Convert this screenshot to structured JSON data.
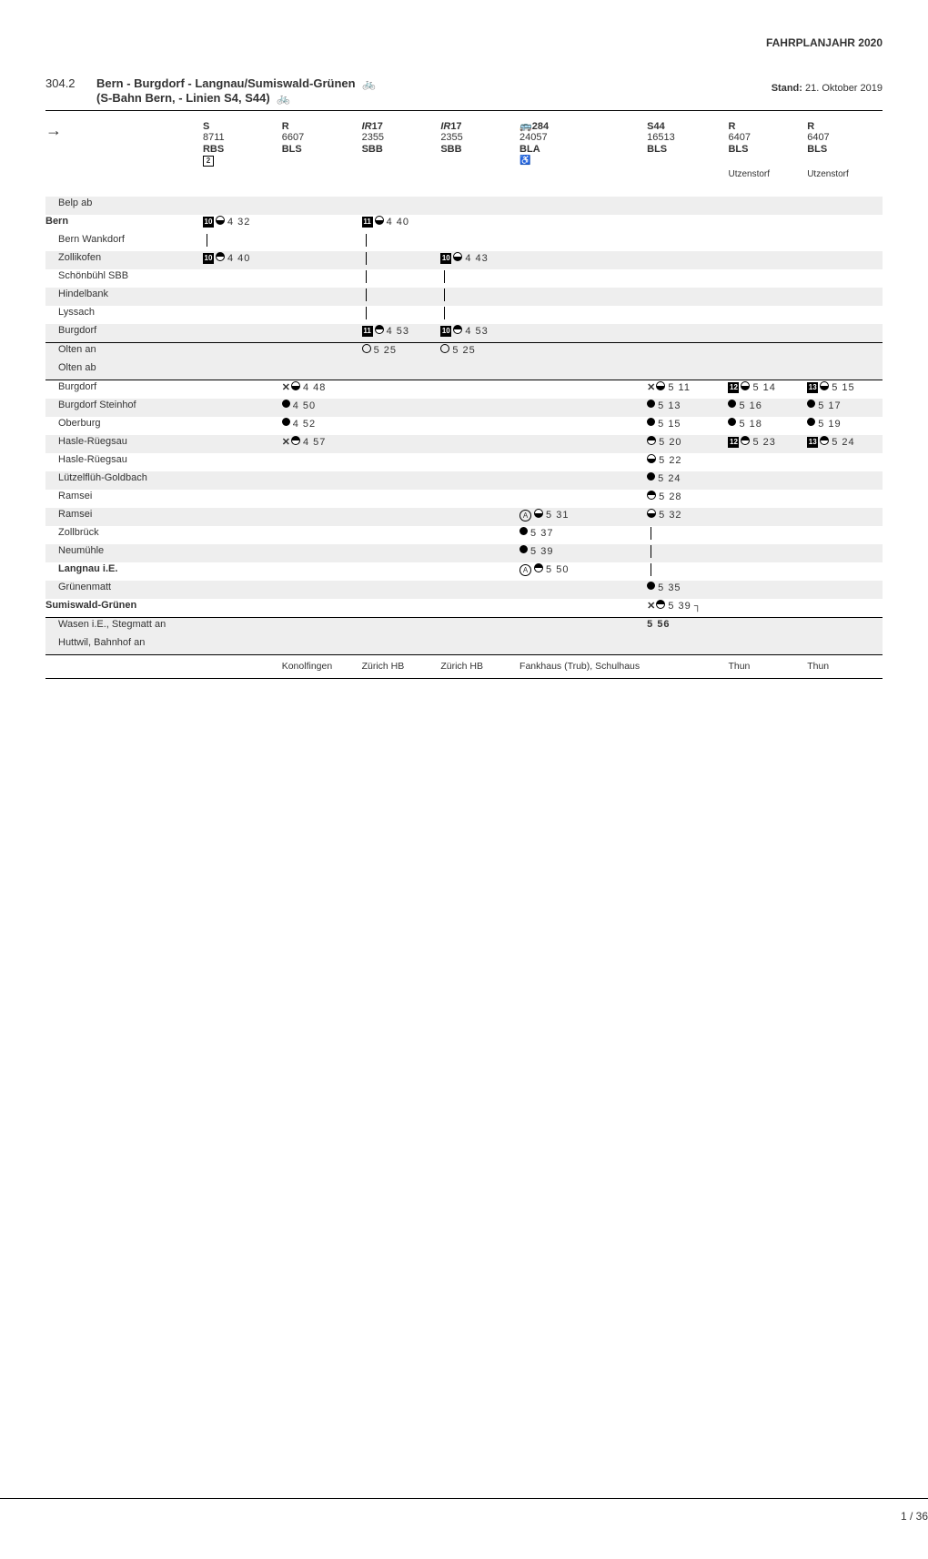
{
  "header_right": "FAHRPLANJAHR 2020",
  "route_number": "304.2",
  "title_line1": "Bern - Burgdorf - Langnau/Sumiswald-Grünen",
  "title_line2": "(S-Bahn Bern, - Linien S4, S44)",
  "bike_glyph": "🚲",
  "stand_label": "Stand:",
  "stand_date": " 21. Oktober 2019",
  "arrow_glyph": "→",
  "heads": [
    {
      "type": "S",
      "num": "8711",
      "op": "RBS",
      "extra": "2"
    },
    {
      "type": "R",
      "num": "6607",
      "op": "BLS",
      "extra": ""
    },
    {
      "type": "IR17",
      "num": "2355",
      "op": "SBB",
      "extra": "",
      "ir": true
    },
    {
      "type": "IR17",
      "num": "2355",
      "op": "SBB",
      "extra": "",
      "ir": true
    },
    {
      "type": "🚌284",
      "num": "24057",
      "op": "BLA",
      "extra": "♿",
      "bus": true
    },
    {
      "type": "S44",
      "num": "16513",
      "op": "BLS",
      "extra": ""
    },
    {
      "type": "R",
      "num": "6407",
      "op": "BLS",
      "extra": ""
    },
    {
      "type": "R",
      "num": "6407",
      "op": "BLS",
      "extra": ""
    }
  ],
  "head_dest": [
    "",
    "",
    "",
    "",
    "",
    "",
    "Utzenstorf",
    "Utzenstorf"
  ],
  "stations": [
    {
      "name": "Belp ab",
      "indent": 1,
      "shade": 1,
      "cells": [
        "",
        "",
        "",
        "",
        "",
        "",
        "",
        ""
      ]
    },
    {
      "name": "Bern",
      "bold": 1,
      "cells": [
        {
          "ft": "10",
          "sym": "half-top",
          "t": "4 32"
        },
        "",
        {
          "ft": "11",
          "sym": "half-top",
          "t": "4 40"
        },
        "",
        "",
        "",
        "",
        ""
      ]
    },
    {
      "name": "Bern Wankdorf",
      "indent": 1,
      "cells": [
        {
          "line": 1
        },
        "",
        {
          "line": 1
        },
        "",
        "",
        "",
        "",
        ""
      ]
    },
    {
      "name": "Zollikofen",
      "indent": 1,
      "shade": 1,
      "cells": [
        {
          "ft": "10",
          "sym": "half-bot",
          "t": "4 40"
        },
        "",
        {
          "line": 1
        },
        {
          "ft": "10",
          "sym": "half-top",
          "t": "4 43"
        },
        "",
        "",
        "",
        ""
      ]
    },
    {
      "name": "Schönbühl SBB",
      "indent": 1,
      "cells": [
        "",
        "",
        {
          "line": 1
        },
        {
          "line": 1
        },
        "",
        "",
        "",
        ""
      ]
    },
    {
      "name": "Hindelbank",
      "indent": 1,
      "shade": 1,
      "cells": [
        "",
        "",
        {
          "line": 1
        },
        {
          "line": 1
        },
        "",
        "",
        "",
        ""
      ]
    },
    {
      "name": "Lyssach",
      "indent": 1,
      "cells": [
        "",
        "",
        {
          "line": 1
        },
        {
          "line": 1
        },
        "",
        "",
        "",
        ""
      ]
    },
    {
      "name": "Burgdorf",
      "indent": 1,
      "shade": 1,
      "cells": [
        "",
        "",
        {
          "ft": "11",
          "sym": "half-bot",
          "t": "4 53"
        },
        {
          "ft": "10",
          "sym": "half-bot",
          "t": "4 53"
        },
        "",
        "",
        "",
        ""
      ]
    },
    {
      "name": "Olten an",
      "indent": 1,
      "shade": 1,
      "rule_above": 1,
      "cells": [
        "",
        "",
        {
          "sym": "open",
          "t": "5 25"
        },
        {
          "sym": "open",
          "t": "5 25"
        },
        "",
        "",
        "",
        ""
      ]
    },
    {
      "name": "Olten ab",
      "indent": 1,
      "shade": 1,
      "cells": [
        "",
        "",
        "",
        "",
        "",
        "",
        "",
        ""
      ]
    },
    {
      "name": "Burgdorf",
      "indent": 1,
      "rule_above": 1,
      "cells": [
        "",
        {
          "x": 1,
          "sym": "half-top",
          "t": "4 48"
        },
        "",
        "",
        "",
        {
          "x": 1,
          "sym": "half-top",
          "t": "5 11"
        },
        {
          "ft": "12",
          "sym": "half-top",
          "t": "5 14"
        },
        {
          "ft": "13",
          "sym": "half-top",
          "t": "5 15"
        }
      ]
    },
    {
      "name": "Burgdorf Steinhof",
      "indent": 1,
      "shade": 1,
      "cells": [
        "",
        {
          "sym": "full",
          "t": "4 50"
        },
        "",
        "",
        "",
        {
          "sym": "full",
          "t": "5 13"
        },
        {
          "sym": "full",
          "t": "5 16"
        },
        {
          "sym": "full",
          "t": "5 17"
        }
      ]
    },
    {
      "name": "Oberburg",
      "indent": 1,
      "cells": [
        "",
        {
          "sym": "full",
          "t": "4 52"
        },
        "",
        "",
        "",
        {
          "sym": "full",
          "t": "5 15"
        },
        {
          "sym": "full",
          "t": "5 18"
        },
        {
          "sym": "full",
          "t": "5 19"
        }
      ]
    },
    {
      "name": "Hasle-Rüegsau",
      "indent": 1,
      "shade": 1,
      "cells": [
        "",
        {
          "x": 1,
          "sym": "half-bot",
          "t": "4 57"
        },
        "",
        "",
        "",
        {
          "sym": "half-bot",
          "t": "5 20"
        },
        {
          "ft": "12",
          "sym": "half-bot",
          "t": "5 23"
        },
        {
          "ft": "13",
          "sym": "half-bot",
          "t": "5 24"
        }
      ]
    },
    {
      "name": "Hasle-Rüegsau",
      "indent": 1,
      "cells": [
        "",
        "",
        "",
        "",
        "",
        {
          "sym": "half-top",
          "t": "5 22"
        },
        "",
        ""
      ]
    },
    {
      "name": "Lützelflüh-Goldbach",
      "indent": 1,
      "shade": 1,
      "cells": [
        "",
        "",
        "",
        "",
        "",
        {
          "sym": "full",
          "t": "5 24"
        },
        "",
        ""
      ]
    },
    {
      "name": "Ramsei",
      "indent": 1,
      "cells": [
        "",
        "",
        "",
        "",
        "",
        {
          "sym": "half-bot",
          "t": "5 28"
        },
        "",
        ""
      ]
    },
    {
      "name": "Ramsei",
      "indent": 1,
      "shade": 1,
      "cells": [
        "",
        "",
        "",
        "",
        {
          "circ": "A",
          "sym": "half-top",
          "t": "5 31"
        },
        {
          "sym": "half-top",
          "t": "5 32"
        },
        "",
        ""
      ]
    },
    {
      "name": "Zollbrück",
      "indent": 1,
      "cells": [
        "",
        "",
        "",
        "",
        {
          "sym": "full",
          "t": "5 37"
        },
        {
          "line": 1
        },
        "",
        ""
      ]
    },
    {
      "name": "Neumühle",
      "indent": 1,
      "shade": 1,
      "cells": [
        "",
        "",
        "",
        "",
        {
          "sym": "full",
          "t": "5 39"
        },
        {
          "line": 1
        },
        "",
        ""
      ]
    },
    {
      "name": "Langnau i.E.",
      "indent": 1,
      "bold": 1,
      "cells": [
        "",
        "",
        "",
        "",
        {
          "circ": "A",
          "sym": "half-bot",
          "t": "5 50"
        },
        {
          "line": 1
        },
        "",
        ""
      ]
    },
    {
      "name": "Grünenmatt",
      "indent": 1,
      "shade": 1,
      "cells": [
        "",
        "",
        "",
        "",
        "",
        {
          "sym": "full",
          "t": "5 35"
        },
        "",
        ""
      ]
    },
    {
      "name": "Sumiswald-Grünen",
      "bold": 1,
      "cells": [
        "",
        "",
        "",
        "",
        "",
        {
          "x": 1,
          "sym": "half-bot",
          "t": "5 39",
          "hook": 1
        },
        "",
        ""
      ]
    },
    {
      "name": "Wasen i.E., Stegmatt an",
      "indent": 1,
      "shade": 1,
      "rule_above": 1,
      "cells": [
        "",
        "",
        "",
        "",
        "",
        {
          "t": "5 56",
          "bold": 1
        },
        "",
        ""
      ]
    },
    {
      "name": "Huttwil, Bahnhof an",
      "indent": 1,
      "shade": 1,
      "cells": [
        "",
        "",
        "",
        "",
        "",
        "",
        "",
        ""
      ]
    }
  ],
  "dest_row": [
    "",
    "Konolfingen",
    "Zürich HB",
    "Zürich HB",
    "Fankhaus (Trub), Schulhaus",
    "",
    "Thun",
    "Thun"
  ],
  "footer_page": "1 / 36"
}
